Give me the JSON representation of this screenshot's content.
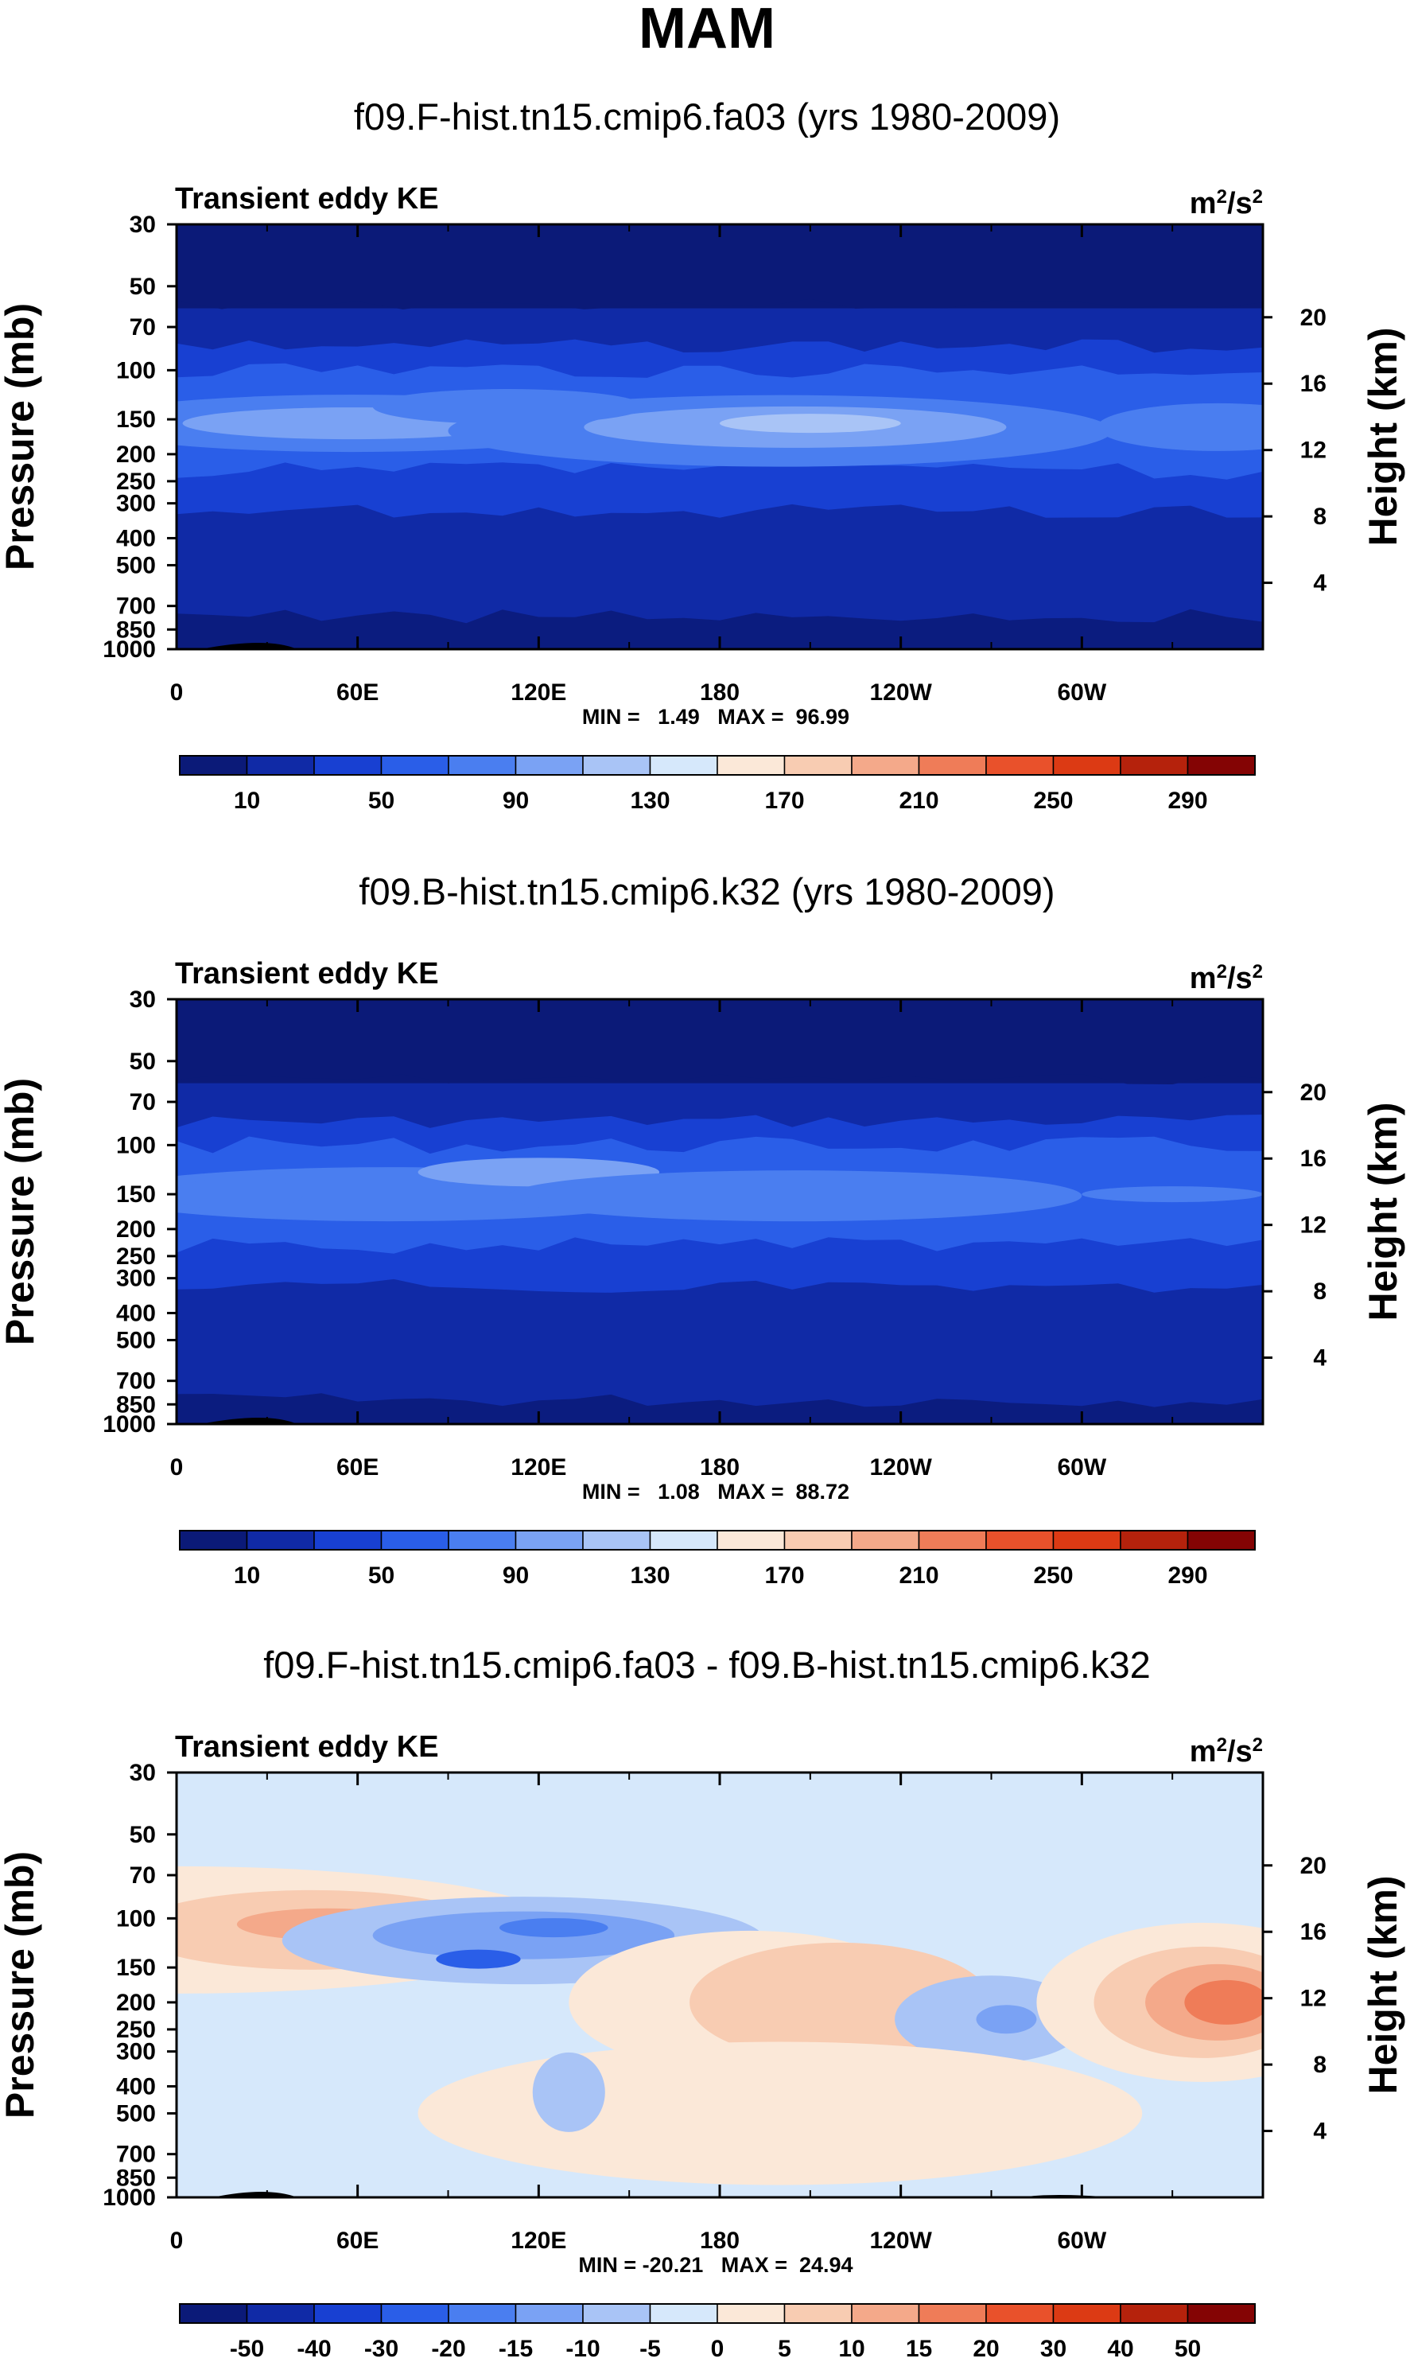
{
  "figure_title": "MAM",
  "chart_data": [
    {
      "type": "heatmap",
      "title": "f09.F-hist.tn15.cmip6.fa03 (yrs 1980-2009)",
      "label_left": "Transient eddy KE",
      "units": "m2/s2",
      "units_base": "m",
      "units_sup1": "2",
      "units_mid": "/s",
      "units_sup2": "2",
      "ylabel_left": "Pressure (mb)",
      "ylabel_right": "Height (km)",
      "x_ticks": [
        "0",
        "60E",
        "120E",
        "180",
        "120W",
        "60W"
      ],
      "x_tick_lon": [
        0,
        60,
        120,
        180,
        240,
        300
      ],
      "xlim": [
        0,
        360
      ],
      "y_ticks": [
        "30",
        "50",
        "70",
        "100",
        "150",
        "200",
        "250",
        "300",
        "400",
        "500",
        "700",
        "850",
        "1000"
      ],
      "y_tick_p": [
        30,
        50,
        70,
        100,
        150,
        200,
        250,
        300,
        400,
        500,
        700,
        850,
        1000
      ],
      "ylim_mb": [
        30,
        1000
      ],
      "height_ticks": [
        "20",
        "16",
        "12",
        "8",
        "4"
      ],
      "height_km": [
        20,
        16,
        12,
        8,
        4
      ],
      "minmax": "MIN =   1.49   MAX =  96.99",
      "min": 1.49,
      "max": 96.99,
      "colorbar": {
        "levels": [
          10,
          30,
          50,
          70,
          90,
          110,
          130,
          150,
          170,
          190,
          210,
          230,
          250,
          270,
          290
        ],
        "labels": [
          "10",
          "50",
          "90",
          "130",
          "170",
          "210",
          "250",
          "290"
        ],
        "label_at_box": [
          1,
          3,
          5,
          7,
          9,
          11,
          13,
          15
        ],
        "colors": [
          "#0b1a78",
          "#102aa6",
          "#1840d2",
          "#2a5ee8",
          "#4a7ef0",
          "#7aa2f4",
          "#a9c4f6",
          "#d6e8fb",
          "#fbe8d8",
          "#f8ccb2",
          "#f4a98a",
          "#ef7c58",
          "#e9512b",
          "#dc3a14",
          "#b5220c",
          "#840404"
        ]
      },
      "field": "mean",
      "seed": 3
    },
    {
      "type": "heatmap",
      "title": "f09.B-hist.tn15.cmip6.k32 (yrs 1980-2009)",
      "label_left": "Transient eddy KE",
      "units": "m2/s2",
      "units_base": "m",
      "units_sup1": "2",
      "units_mid": "/s",
      "units_sup2": "2",
      "ylabel_left": "Pressure (mb)",
      "ylabel_right": "Height (km)",
      "x_ticks": [
        "0",
        "60E",
        "120E",
        "180",
        "120W",
        "60W"
      ],
      "x_tick_lon": [
        0,
        60,
        120,
        180,
        240,
        300
      ],
      "xlim": [
        0,
        360
      ],
      "y_ticks": [
        "30",
        "50",
        "70",
        "100",
        "150",
        "200",
        "250",
        "300",
        "400",
        "500",
        "700",
        "850",
        "1000"
      ],
      "y_tick_p": [
        30,
        50,
        70,
        100,
        150,
        200,
        250,
        300,
        400,
        500,
        700,
        850,
        1000
      ],
      "ylim_mb": [
        30,
        1000
      ],
      "height_ticks": [
        "20",
        "16",
        "12",
        "8",
        "4"
      ],
      "height_km": [
        20,
        16,
        12,
        8,
        4
      ],
      "minmax": "MIN =   1.08   MAX =  88.72",
      "min": 1.08,
      "max": 88.72,
      "colorbar": {
        "levels": [
          10,
          30,
          50,
          70,
          90,
          110,
          130,
          150,
          170,
          190,
          210,
          230,
          250,
          270,
          290
        ],
        "labels": [
          "10",
          "50",
          "90",
          "130",
          "170",
          "210",
          "250",
          "290"
        ],
        "label_at_box": [
          1,
          3,
          5,
          7,
          9,
          11,
          13,
          15
        ],
        "colors": [
          "#0b1a78",
          "#102aa6",
          "#1840d2",
          "#2a5ee8",
          "#4a7ef0",
          "#7aa2f4",
          "#a9c4f6",
          "#d6e8fb",
          "#fbe8d8",
          "#f8ccb2",
          "#f4a98a",
          "#ef7c58",
          "#e9512b",
          "#dc3a14",
          "#b5220c",
          "#840404"
        ]
      },
      "field": "mean",
      "seed": 7
    },
    {
      "type": "heatmap",
      "title": "f09.F-hist.tn15.cmip6.fa03 - f09.B-hist.tn15.cmip6.k32",
      "label_left": "Transient eddy KE",
      "units": "m2/s2",
      "units_base": "m",
      "units_sup1": "2",
      "units_mid": "/s",
      "units_sup2": "2",
      "ylabel_left": "Pressure (mb)",
      "ylabel_right": "Height (km)",
      "x_ticks": [
        "0",
        "60E",
        "120E",
        "180",
        "120W",
        "60W"
      ],
      "x_tick_lon": [
        0,
        60,
        120,
        180,
        240,
        300
      ],
      "xlim": [
        0,
        360
      ],
      "y_ticks": [
        "30",
        "50",
        "70",
        "100",
        "150",
        "200",
        "250",
        "300",
        "400",
        "500",
        "700",
        "850",
        "1000"
      ],
      "y_tick_p": [
        30,
        50,
        70,
        100,
        150,
        200,
        250,
        300,
        400,
        500,
        700,
        850,
        1000
      ],
      "ylim_mb": [
        30,
        1000
      ],
      "height_ticks": [
        "20",
        "16",
        "12",
        "8",
        "4"
      ],
      "height_km": [
        20,
        16,
        12,
        8,
        4
      ],
      "minmax": "MIN = -20.21   MAX =  24.94",
      "min": -20.21,
      "max": 24.94,
      "colorbar": {
        "levels": [
          -50,
          -40,
          -30,
          -20,
          -15,
          -10,
          -5,
          0,
          5,
          10,
          15,
          20,
          30,
          40,
          50
        ],
        "labels": [
          "-50",
          "-40",
          "-30",
          "-20",
          "-15",
          "-10",
          "-5",
          "0",
          "5",
          "10",
          "15",
          "20",
          "30",
          "40",
          "50"
        ],
        "label_at_box": [
          1,
          2,
          3,
          4,
          5,
          6,
          7,
          8,
          9,
          10,
          11,
          12,
          13,
          14,
          15
        ],
        "colors": [
          "#0b1a78",
          "#102aa6",
          "#1840d2",
          "#2a5ee8",
          "#4a7ef0",
          "#7aa2f4",
          "#a9c4f6",
          "#d6e8fb",
          "#fbe8d8",
          "#f8ccb2",
          "#f4a98a",
          "#ef7c58",
          "#e9512b",
          "#dc3a14",
          "#b5220c",
          "#840404"
        ]
      },
      "field": "diff",
      "seed": 11
    }
  ]
}
